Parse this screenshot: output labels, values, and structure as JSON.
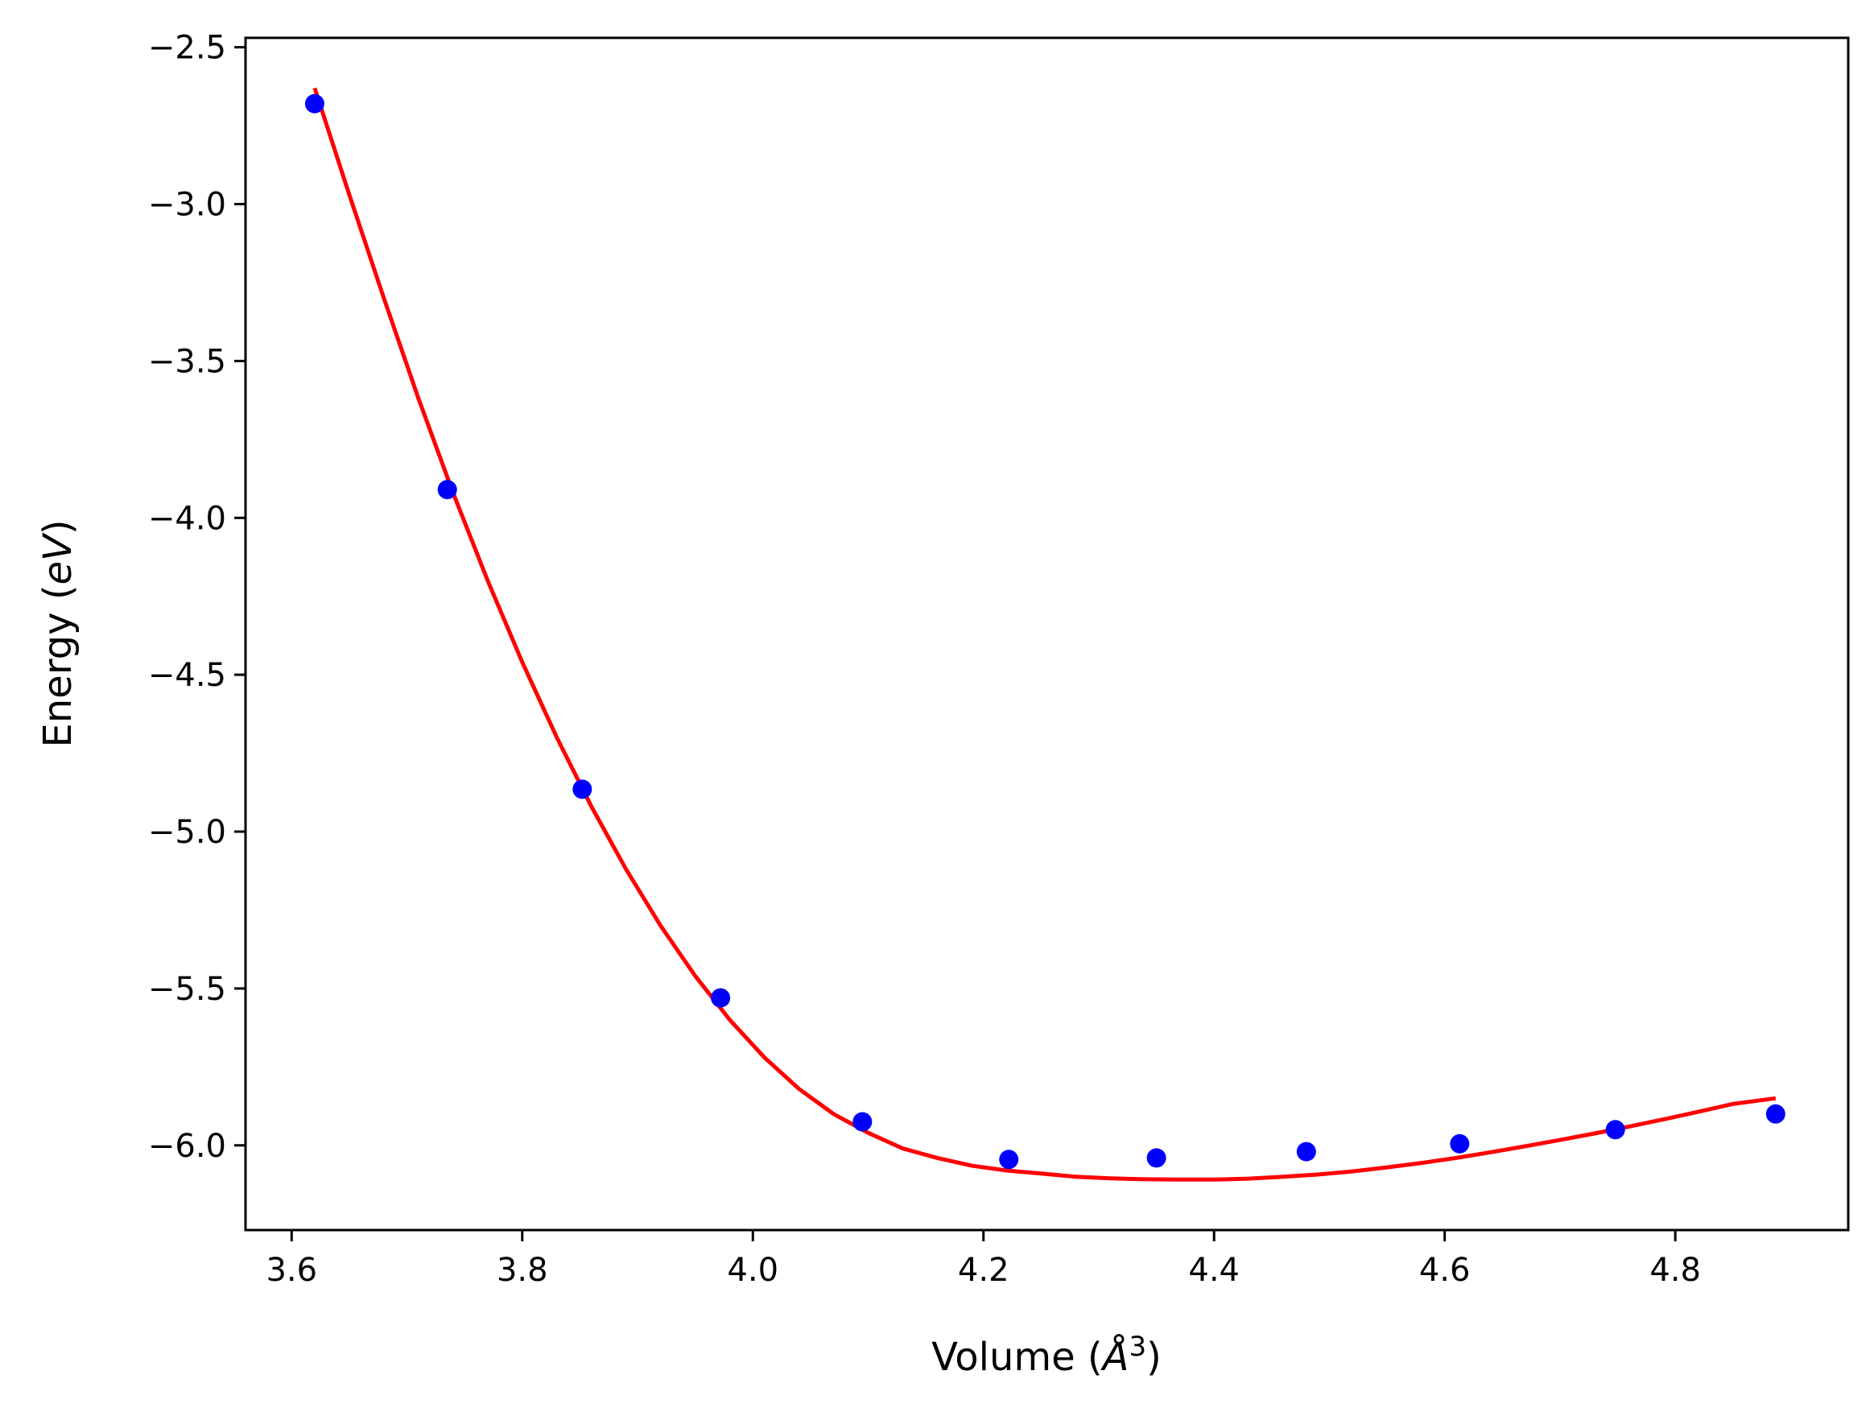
{
  "chart_data": {
    "type": "scatter",
    "title": "",
    "xlabel": "Volume (",
    "xlabel_symbol": "Å",
    "xlabel_sup": "3",
    "xlabel_close": ")",
    "ylabel": "Energy (",
    "ylabel_italic": "eV",
    "ylabel_close": ")",
    "xlim": [
      3.56,
      4.95
    ],
    "ylim": [
      -6.27,
      -2.47
    ],
    "xticks": [
      3.6,
      3.8,
      4.0,
      4.2,
      4.4,
      4.6,
      4.8
    ],
    "xtick_labels": [
      "3.6",
      "3.8",
      "4.0",
      "4.2",
      "4.4",
      "4.6",
      "4.8"
    ],
    "yticks": [
      -2.5,
      -3.0,
      -3.5,
      -4.0,
      -4.5,
      -5.0,
      -5.5,
      -6.0
    ],
    "ytick_labels": [
      "−2.5",
      "−3.0",
      "−3.5",
      "−4.0",
      "−4.5",
      "−5.0",
      "−5.5",
      "−6.0"
    ],
    "grid": false,
    "series": [
      {
        "kind": "points",
        "color": "#0000ff",
        "x": [
          3.62,
          3.735,
          3.852,
          3.972,
          4.095,
          4.222,
          4.35,
          4.48,
          4.613,
          4.748,
          4.887
        ],
        "y": [
          -2.68,
          -3.91,
          -4.865,
          -5.53,
          -5.925,
          -6.045,
          -6.04,
          -6.02,
          -5.995,
          -5.95,
          -5.9
        ]
      },
      {
        "kind": "fit-curve",
        "color": "#ff0000",
        "x": [
          3.62,
          3.65,
          3.68,
          3.71,
          3.74,
          3.77,
          3.8,
          3.83,
          3.86,
          3.89,
          3.92,
          3.95,
          3.98,
          4.01,
          4.04,
          4.07,
          4.1,
          4.13,
          4.16,
          4.19,
          4.22,
          4.25,
          4.28,
          4.31,
          4.34,
          4.37,
          4.4,
          4.43,
          4.46,
          4.49,
          4.52,
          4.55,
          4.58,
          4.61,
          4.64,
          4.67,
          4.7,
          4.73,
          4.76,
          4.79,
          4.82,
          4.85,
          4.887
        ],
        "y": [
          -2.63,
          -2.97,
          -3.3,
          -3.62,
          -3.92,
          -4.2,
          -4.46,
          -4.7,
          -4.92,
          -5.12,
          -5.3,
          -5.46,
          -5.6,
          -5.72,
          -5.82,
          -5.9,
          -5.96,
          -6.01,
          -6.04,
          -6.065,
          -6.08,
          -6.09,
          -6.1,
          -6.105,
          -6.108,
          -6.109,
          -6.109,
          -6.106,
          -6.1,
          -6.093,
          -6.083,
          -6.07,
          -6.056,
          -6.04,
          -6.022,
          -6.003,
          -5.983,
          -5.962,
          -5.94,
          -5.917,
          -5.893,
          -5.868,
          -5.85
        ]
      }
    ]
  }
}
